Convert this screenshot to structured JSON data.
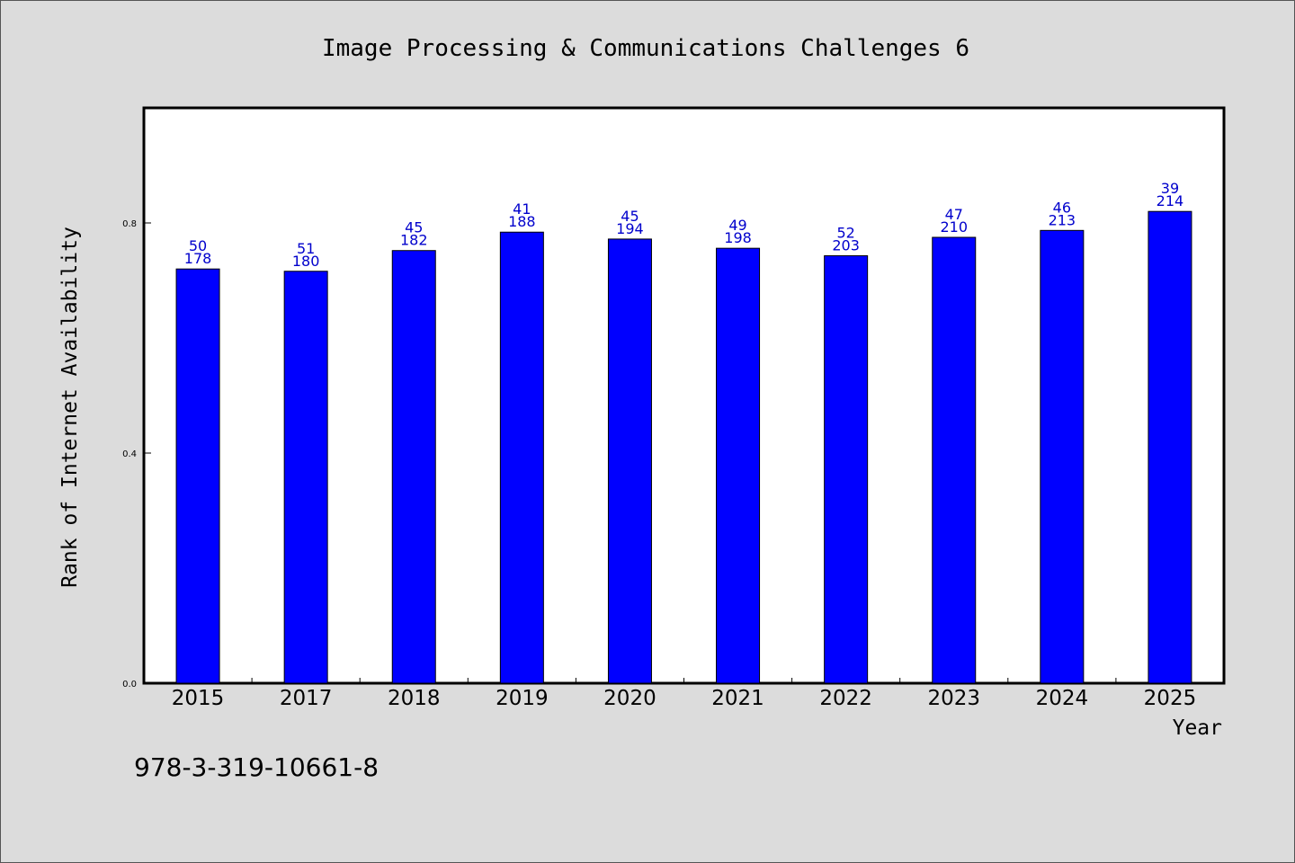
{
  "chart_data": {
    "type": "bar",
    "title": "Image Processing & Communications Challenges 6",
    "xlabel": "Year",
    "ylabel": "Rank of Internet Availability",
    "categories": [
      "2015",
      "2017",
      "2018",
      "2019",
      "2020",
      "2021",
      "2022",
      "2023",
      "2024",
      "2025"
    ],
    "series": [
      {
        "values": [
          0.72,
          0.716,
          0.752,
          0.784,
          0.772,
          0.756,
          0.743,
          0.775,
          0.787,
          0.82
        ],
        "labels_top": [
          "50",
          "51",
          "45",
          "41",
          "45",
          "49",
          "52",
          "47",
          "46",
          "39"
        ],
        "labels_bottom": [
          "178",
          "180",
          "182",
          "188",
          "194",
          "198",
          "203",
          "210",
          "213",
          "214"
        ]
      }
    ],
    "ylim": [
      0,
      1.0
    ],
    "yticks": [
      "0.0",
      "0.4",
      "0.8"
    ],
    "grid": false,
    "bar_color": "#0000ff",
    "label_color": "#0000cc",
    "footnote": "978-3-319-10661-8"
  }
}
